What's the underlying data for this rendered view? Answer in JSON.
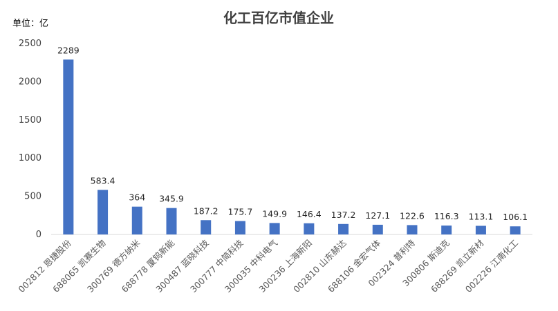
{
  "chart_data": {
    "type": "bar",
    "title": "化工百亿市值企业",
    "unit_label": "单位：亿",
    "categories": [
      "002812 恩捷股份",
      "688065 凯赛生物",
      "300769 德方纳米",
      "688778 厦钨新能",
      "300487 蓝晓科技",
      "300777 中简科技",
      "300035 中科电气",
      "300236 上海新阳",
      "002810 山东赫达",
      "688106 金宏气体",
      "002324 普利特",
      "300806 斯迪克",
      "688269 凯立新材",
      "002226 江南化工"
    ],
    "values": [
      2289,
      583.4,
      364,
      345.9,
      187.2,
      175.7,
      149.9,
      146.4,
      137.2,
      127.1,
      122.6,
      116.3,
      113.1,
      106.1
    ],
    "data_labels": [
      "2289",
      "583.4",
      "364",
      "345.9",
      "187.2",
      "175.7",
      "149.9",
      "146.4",
      "137.2",
      "127.1",
      "122.6",
      "116.3",
      "113.1",
      "106.1"
    ],
    "yticks": [
      0,
      500,
      1000,
      1500,
      2000,
      2500
    ],
    "ylim": [
      0,
      2500
    ],
    "grid": false,
    "legend": "none",
    "bar_color": "#4472c4"
  }
}
